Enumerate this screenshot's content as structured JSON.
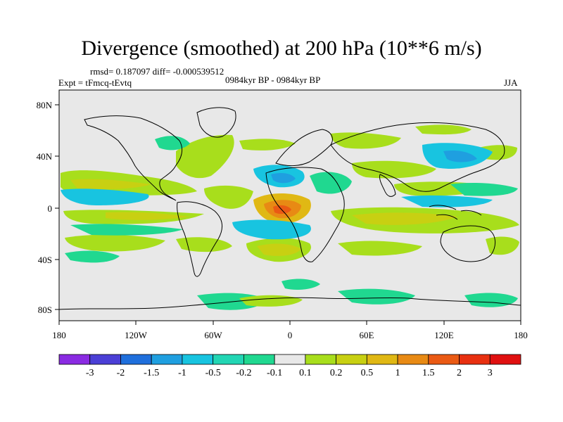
{
  "title": "Divergence (smoothed) at 200 hPa (10**6 m/s)",
  "stats": "rmsd= 0.187097 diff= -0.000539512",
  "experiment": "Expt = tFmcq-tEvtq",
  "period": "0984kyr BP - 0984kyr BP",
  "season": "JJA",
  "lat_labels": [
    "80N",
    "40N",
    "0",
    "40S",
    "80S"
  ],
  "lon_labels": [
    "180",
    "120W",
    "60W",
    "0",
    "60E",
    "120E",
    "180"
  ],
  "colorbar": {
    "labels": [
      "-3",
      "-2",
      "-1.5",
      "-1",
      "-0.5",
      "-0.2",
      "-0.1",
      "0.1",
      "0.2",
      "0.5",
      "1",
      "1.5",
      "2",
      "3"
    ],
    "colors": [
      "#8a2be2",
      "#4b3fd6",
      "#1f6fdc",
      "#1f9fe0",
      "#18c4e0",
      "#22d6b4",
      "#20d890",
      "#e8e8e8",
      "#a8de1c",
      "#c8d012",
      "#e0b814",
      "#e88a14",
      "#ea5a14",
      "#e83010",
      "#e01010"
    ]
  },
  "map_data": {
    "field": "200 hPa divergence difference (smoothed)",
    "units": "10**6 m/s",
    "projection": "cylindrical equidistant",
    "lat_range": [
      -90,
      90
    ],
    "lon_range": [
      -180,
      180
    ]
  }
}
